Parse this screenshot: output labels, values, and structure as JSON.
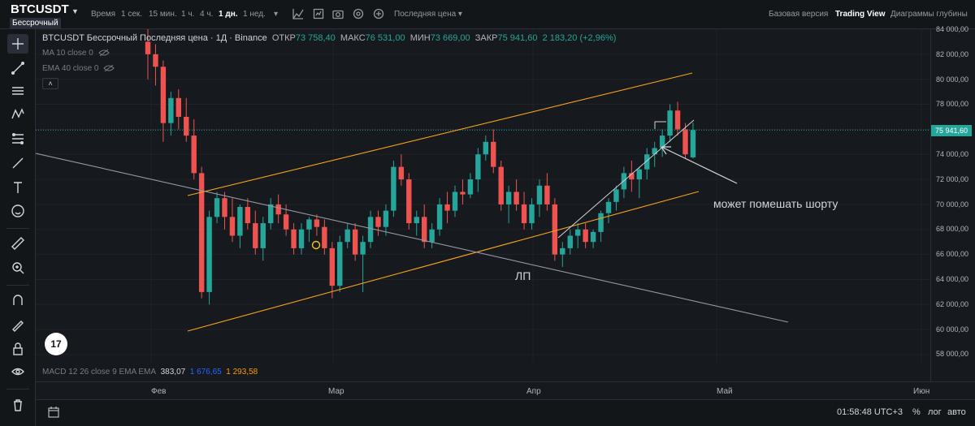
{
  "header": {
    "symbol": "BTCUSDT",
    "badge": "Бессрочный",
    "items": [
      "Время",
      "1 сек.",
      "15 мин.",
      "1 ч.",
      "4 ч.",
      "1 дн.",
      "1 нед."
    ],
    "active_item": "1 дн.",
    "price_type": "Последняя цена",
    "views": [
      "Базовая версия",
      "Trading View",
      "Диаграммы глубины"
    ],
    "active_view": "Trading View"
  },
  "legend": {
    "title": "BTCUSDT Бессрочный Последняя цена · 1Д · Binance",
    "open_label": "ОТКР",
    "open": "73 758,40",
    "high_label": "МАКС",
    "high": "76 531,00",
    "low_label": "МИН",
    "low": "73 669,00",
    "close_label": "ЗАКР",
    "close": "75 941,60",
    "change": "2 183,20 (+2,96%)",
    "ma": "MA 10 close 0",
    "ema": "EMA 40 close 0",
    "collapse": "˄"
  },
  "price_axis": {
    "labels": [
      "84 000,00",
      "82 000,00",
      "80 000,00",
      "78 000,00",
      "76 000,00",
      "74 000,00",
      "72 000,00",
      "70 000,00",
      "68 000,00",
      "66 000,00",
      "64 000,00",
      "62 000,00",
      "60 000,00",
      "58 000,00"
    ],
    "current": "75 941,60"
  },
  "time_axis": {
    "labels": [
      "Фев",
      "Мар",
      "Апр",
      "Май",
      "Июн"
    ]
  },
  "macd": {
    "label": "MACD 12 26 close 9 EMA EMA",
    "v1": "383,07",
    "v2": "1 676,65",
    "v3": "1 293,58"
  },
  "footer": {
    "clock": "01:58:48 UTC+3",
    "percent": "%",
    "log": "лог",
    "auto": "авто"
  },
  "annotations": {
    "note": "может помешать шорту",
    "lp": "ЛП"
  },
  "logo": "17",
  "colors": {
    "up": "#26a69a",
    "down": "#ef5350",
    "channel": "#f7a21b",
    "trend": "#9598a1"
  },
  "chart_data": {
    "type": "candlestick",
    "ylim": [
      58000,
      84000
    ],
    "x": [
      "Фев",
      "Мар",
      "Апр",
      "Май",
      "Июн"
    ],
    "last": {
      "open": 73758.4,
      "high": 76531.0,
      "low": 73669.0,
      "close": 75941.6
    }
  }
}
